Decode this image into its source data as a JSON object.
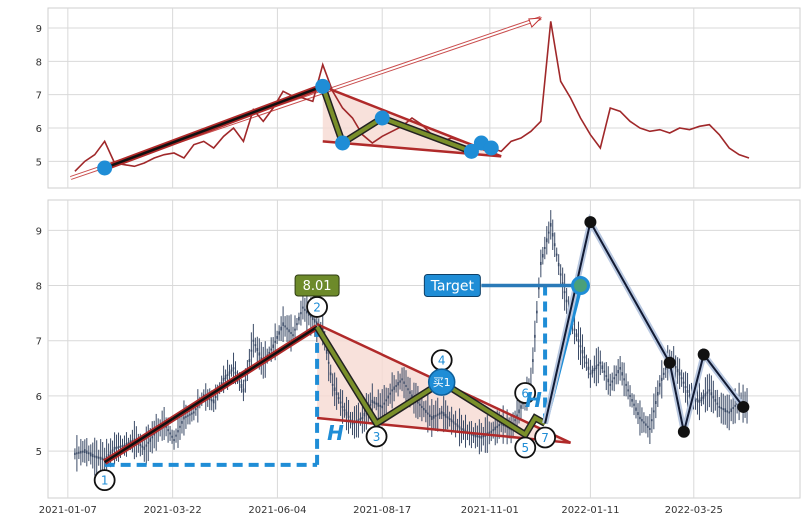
{
  "chart_data": [
    {
      "type": "line",
      "panel": "top",
      "ylim": [
        4.2,
        9.6
      ],
      "yticks": [
        5,
        6,
        7,
        8,
        9
      ],
      "grid": true,
      "colors": {
        "price": "#a0282a",
        "node": "#1f8dd6",
        "trend": "#b02a2a",
        "leg": "#7a8f2a"
      },
      "x_dates": [
        "2021-01-12",
        "2021-01-19",
        "2021-01-26",
        "2021-02-02",
        "2021-02-09",
        "2021-02-16",
        "2021-02-23",
        "2021-03-02",
        "2021-03-09",
        "2021-03-16",
        "2021-03-23",
        "2021-03-30",
        "2021-04-06",
        "2021-04-13",
        "2021-04-20",
        "2021-04-27",
        "2021-05-04",
        "2021-05-11",
        "2021-05-18",
        "2021-05-25",
        "2021-06-01",
        "2021-06-08",
        "2021-06-15",
        "2021-06-22",
        "2021-06-29",
        "2021-07-06",
        "2021-07-13",
        "2021-07-20",
        "2021-07-27",
        "2021-08-03",
        "2021-08-10",
        "2021-08-17",
        "2021-08-24",
        "2021-08-31",
        "2021-09-07",
        "2021-09-14",
        "2021-09-21",
        "2021-09-28",
        "2021-10-05",
        "2021-10-12",
        "2021-10-19",
        "2021-10-26",
        "2021-11-02",
        "2021-11-09",
        "2021-11-16",
        "2021-11-23",
        "2021-11-30",
        "2021-12-07",
        "2021-12-14",
        "2021-12-21",
        "2021-12-28",
        "2022-01-04",
        "2022-01-11",
        "2022-01-18",
        "2022-01-25",
        "2022-02-01",
        "2022-02-08",
        "2022-02-15",
        "2022-02-22",
        "2022-03-01",
        "2022-03-08",
        "2022-03-15",
        "2022-03-22",
        "2022-03-29",
        "2022-04-05",
        "2022-04-12",
        "2022-04-19",
        "2022-04-26",
        "2022-05-03"
      ],
      "close": [
        4.7,
        5.0,
        5.2,
        5.6,
        4.95,
        4.9,
        4.85,
        4.95,
        5.1,
        5.2,
        5.25,
        5.1,
        5.5,
        5.6,
        5.4,
        5.75,
        6.0,
        5.6,
        6.55,
        6.2,
        6.6,
        7.1,
        6.95,
        6.9,
        6.8,
        7.9,
        7.1,
        6.6,
        6.3,
        5.8,
        5.55,
        5.75,
        5.9,
        6.05,
        6.3,
        6.1,
        5.8,
        5.6,
        5.7,
        5.6,
        5.5,
        5.35,
        5.4,
        5.3,
        5.6,
        5.7,
        5.9,
        6.2,
        9.2,
        7.4,
        6.9,
        6.3,
        5.8,
        5.4,
        6.6,
        6.5,
        6.2,
        6.0,
        5.9,
        5.95,
        5.85,
        6.0,
        5.95,
        6.05,
        6.1,
        5.8,
        5.4,
        5.2,
        5.1
      ],
      "pattern_points": [
        {
          "date": "2021-02-02",
          "value": 4.8
        },
        {
          "date": "2021-07-06",
          "value": 7.25
        },
        {
          "date": "2021-07-20",
          "value": 5.55
        },
        {
          "date": "2021-08-17",
          "value": 6.3
        },
        {
          "date": "2021-10-19",
          "value": 5.3
        },
        {
          "date": "2021-10-26",
          "value": 5.55
        },
        {
          "date": "2021-11-02",
          "value": 5.4
        }
      ],
      "upper_trend": [
        {
          "date": "2021-07-06",
          "value": 7.25
        },
        {
          "date": "2021-11-09",
          "value": 5.15
        }
      ],
      "lower_trend": [
        {
          "date": "2021-07-06",
          "value": 5.6
        },
        {
          "date": "2021-11-09",
          "value": 5.15
        }
      ],
      "projection_arrow": [
        {
          "date": "2021-01-09",
          "value": 4.5
        },
        {
          "date": "2021-12-07",
          "value": 9.3
        }
      ]
    },
    {
      "type": "candlestick",
      "panel": "bottom",
      "ylim": [
        4.15,
        9.55
      ],
      "yticks": [
        5,
        6,
        7,
        8,
        9
      ],
      "xticks": [
        "2021-01-07",
        "2021-03-22",
        "2021-06-04",
        "2021-08-17",
        "2021-11-01",
        "2022-01-11",
        "2022-03-25"
      ],
      "grid": true,
      "colors": {
        "candle": "#3a4a66",
        "node": "#1f8dd6",
        "trend": "#b02a2a",
        "leg": "#7a8f2a",
        "fill": "#f6d9d2",
        "dash": "#1f8dd6",
        "label_bg": "#6d8a2a",
        "black_node": "#111111"
      },
      "x_dates": [
        "2021-01-12",
        "2021-01-19",
        "2021-01-26",
        "2021-02-02",
        "2021-02-09",
        "2021-02-16",
        "2021-02-23",
        "2021-03-02",
        "2021-03-09",
        "2021-03-16",
        "2021-03-23",
        "2021-03-30",
        "2021-04-06",
        "2021-04-13",
        "2021-04-20",
        "2021-04-27",
        "2021-05-04",
        "2021-05-11",
        "2021-05-18",
        "2021-05-25",
        "2021-06-01",
        "2021-06-08",
        "2021-06-15",
        "2021-06-22",
        "2021-06-29",
        "2021-07-06",
        "2021-07-13",
        "2021-07-20",
        "2021-07-27",
        "2021-08-03",
        "2021-08-10",
        "2021-08-17",
        "2021-08-24",
        "2021-08-31",
        "2021-09-07",
        "2021-09-14",
        "2021-09-21",
        "2021-09-28",
        "2021-10-05",
        "2021-10-12",
        "2021-10-19",
        "2021-10-26",
        "2021-11-02",
        "2021-11-09",
        "2021-11-16",
        "2021-11-23",
        "2021-11-30",
        "2021-12-07",
        "2021-12-14",
        "2021-12-21",
        "2021-12-28",
        "2022-01-04",
        "2022-01-11",
        "2022-01-18",
        "2022-01-25",
        "2022-02-01",
        "2022-02-08",
        "2022-02-15",
        "2022-02-22",
        "2022-03-01",
        "2022-03-08",
        "2022-03-15",
        "2022-03-22",
        "2022-03-29",
        "2022-04-05",
        "2022-04-12",
        "2022-04-19",
        "2022-04-26",
        "2022-05-03"
      ],
      "close": [
        4.95,
        5.0,
        4.9,
        4.85,
        5.05,
        5.1,
        5.2,
        5.05,
        5.3,
        5.5,
        5.2,
        5.6,
        5.7,
        6.0,
        5.9,
        6.3,
        6.5,
        6.1,
        7.0,
        6.6,
        6.9,
        7.3,
        7.1,
        7.6,
        7.4,
        7.2,
        6.2,
        5.8,
        5.5,
        5.6,
        5.9,
        5.8,
        6.1,
        6.3,
        6.0,
        5.8,
        5.6,
        5.7,
        5.55,
        5.4,
        5.3,
        5.25,
        5.35,
        5.5,
        5.4,
        5.8,
        6.2,
        8.4,
        9.1,
        8.2,
        7.4,
        6.9,
        6.4,
        6.6,
        6.2,
        6.5,
        6.0,
        5.6,
        5.4,
        6.2,
        6.7,
        6.4,
        6.0,
        5.9,
        6.1,
        5.8,
        5.7,
        5.9,
        5.8
      ],
      "pattern_points": [
        {
          "label": "1",
          "date": "2021-02-02",
          "value": 4.8
        },
        {
          "label": "2",
          "date": "2021-07-02",
          "value": 7.25
        },
        {
          "label": "3",
          "date": "2021-08-13",
          "value": 5.5
        },
        {
          "label": "4",
          "date": "2021-09-28",
          "value": 6.25
        },
        {
          "label": "5",
          "date": "2021-11-26",
          "value": 5.3
        },
        {
          "label": "6",
          "date": "2021-12-03",
          "value": 5.6
        },
        {
          "label": "7",
          "date": "2021-12-10",
          "value": 5.5
        }
      ],
      "upper_trend": [
        {
          "date": "2021-07-02",
          "value": 7.3
        },
        {
          "date": "2021-12-28",
          "value": 5.15
        }
      ],
      "lower_trend": [
        {
          "date": "2021-07-02",
          "value": 5.6
        },
        {
          "date": "2021-12-28",
          "value": 5.15
        }
      ],
      "breakout_path": [
        {
          "date": "2021-12-10",
          "value": 5.5
        },
        {
          "date": "2022-01-04",
          "value": 8.0
        }
      ],
      "target_line": {
        "from_date": "2021-10-26",
        "to_date": "2022-01-04",
        "value": 8.0
      },
      "height_line": {
        "date": "2021-07-02",
        "from": 7.25,
        "to": 4.75
      },
      "height_line2": {
        "date": "2021-12-10",
        "from": 8.0,
        "to": 5.5
      },
      "base_line": {
        "from_date": "2021-02-02",
        "to_date": "2021-07-02",
        "value": 4.75
      },
      "black_path": [
        {
          "date": "2021-12-10",
          "value": 5.5
        },
        {
          "date": "2022-01-11",
          "value": 9.15
        },
        {
          "date": "2022-03-08",
          "value": 6.6
        },
        {
          "date": "2022-03-18",
          "value": 5.35
        },
        {
          "date": "2022-04-01",
          "value": 6.75
        },
        {
          "date": "2022-04-29",
          "value": 5.8
        }
      ],
      "peak_label": {
        "date": "2021-07-02",
        "value": 8.01,
        "text": "8.01"
      },
      "buy_marker": {
        "date": "2021-09-28",
        "value": 6.25,
        "text": "买1"
      },
      "target_label": "Target",
      "height_label": "H"
    }
  ]
}
